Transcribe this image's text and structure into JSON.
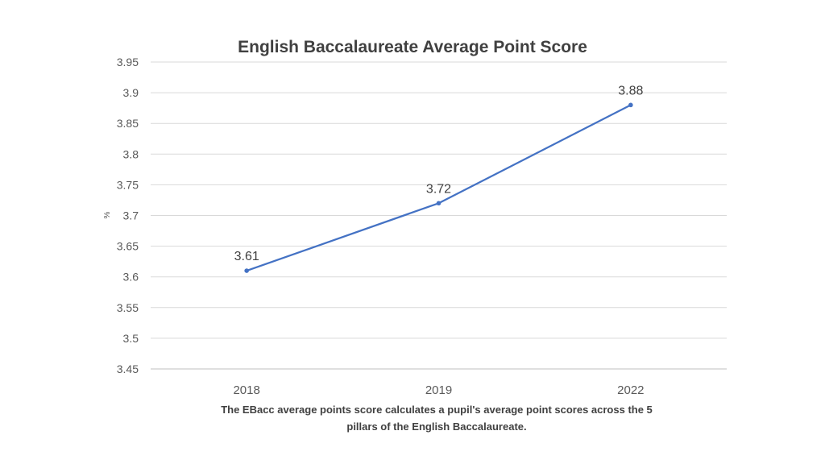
{
  "chart_data": {
    "type": "line",
    "title": "English Baccalaureate Average Point Score",
    "ylabel": "%",
    "xlabel": "",
    "categories": [
      "2018",
      "2019",
      "2022"
    ],
    "series": [
      {
        "values": [
          3.61,
          3.72,
          3.88
        ],
        "data_labels": [
          "3.61",
          "3.72",
          "3.88"
        ]
      }
    ],
    "ylim": [
      3.45,
      3.95
    ],
    "yticks": [
      "3.45",
      "3.5",
      "3.55",
      "3.6",
      "3.65",
      "3.7",
      "3.75",
      "3.8",
      "3.85",
      "3.9",
      "3.95"
    ],
    "grid": true,
    "legend": "none",
    "colors": {
      "line": "#4472C4",
      "grid": "#D9D9D9",
      "text": "#595959"
    }
  },
  "caption": {
    "line1": "The EBacc average points score calculates a pupil's average point scores across the 5",
    "line2": "pillars of the English Baccalaureate."
  }
}
